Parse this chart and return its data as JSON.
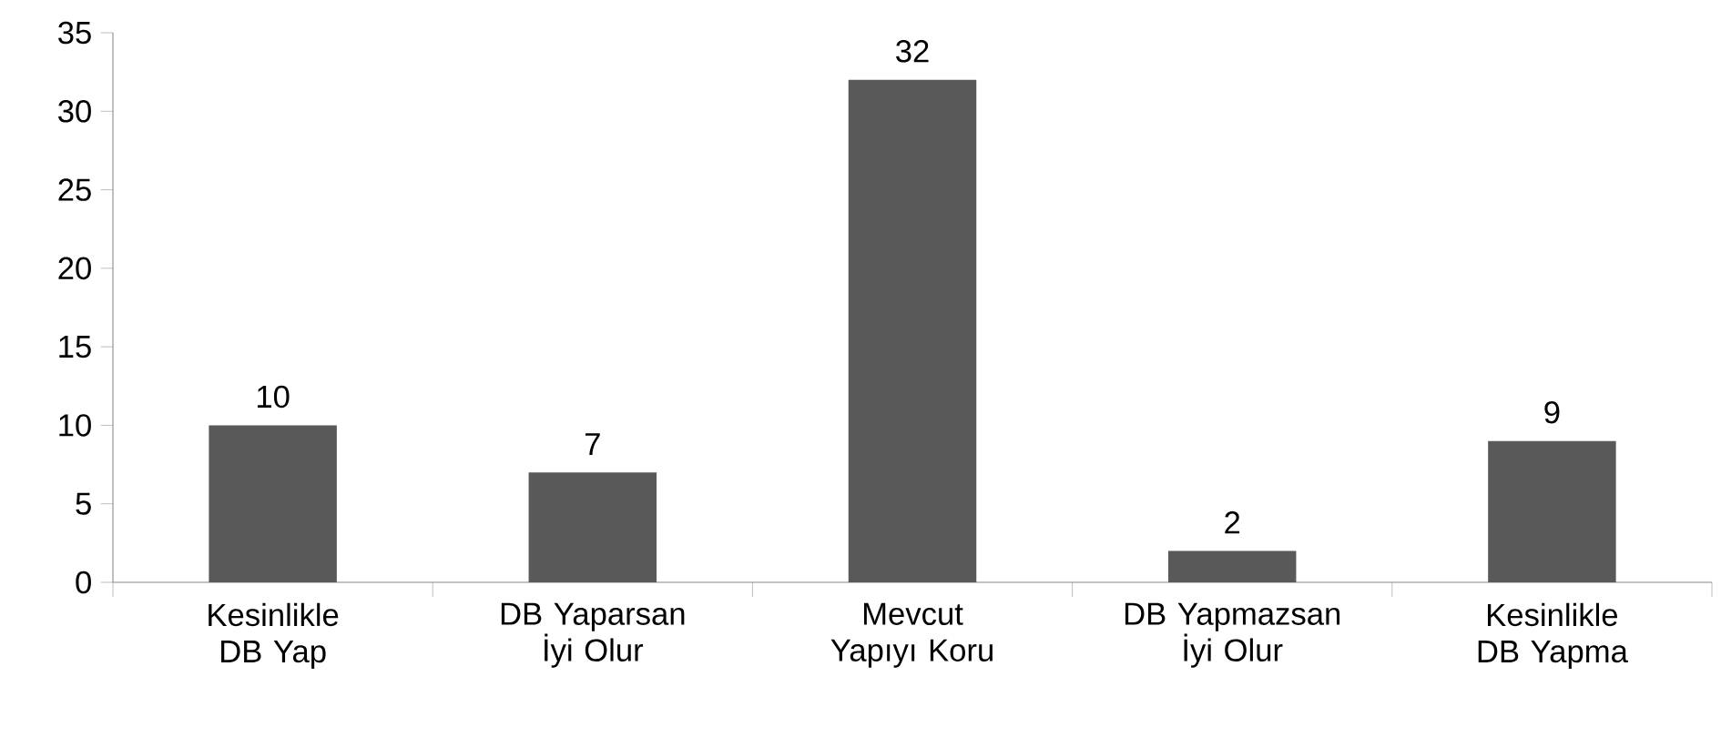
{
  "chart_data": {
    "type": "bar",
    "categories": [
      "Kesinlikle DB Yap",
      "DB Yaparsan İyi Olur",
      "Mevcut Yapıyı Koru",
      "DB Yapmazsan İyi Olur",
      "Kesinlikle DB Yapma"
    ],
    "values": [
      10,
      7,
      32,
      2,
      9
    ],
    "color": "#595959",
    "ylim": [
      0,
      35
    ],
    "yticks": [
      0,
      5,
      10,
      15,
      20,
      25,
      30,
      35
    ],
    "data_labels": true
  }
}
